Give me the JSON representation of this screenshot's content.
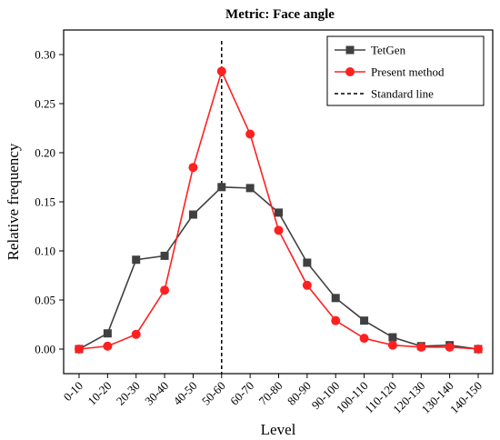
{
  "chart_data": {
    "type": "line",
    "title": "Metric: Face angle",
    "xlabel": "Level",
    "ylabel": "Relative frequency",
    "categories": [
      "0-10",
      "10-20",
      "20-30",
      "30-40",
      "40-50",
      "50-60",
      "60-70",
      "70-80",
      "80-90",
      "90-100",
      "100-110",
      "110-120",
      "120-130",
      "130-140",
      "140-150"
    ],
    "ylim": [
      -0.025,
      0.325
    ],
    "yticks": [
      "0.00",
      "0.05",
      "0.10",
      "0.15",
      "0.20",
      "0.25",
      "0.30"
    ],
    "ytick_values": [
      0,
      0.05,
      0.1,
      0.15,
      0.2,
      0.25,
      0.3
    ],
    "grid": false,
    "legend_position": "top-right",
    "series": [
      {
        "name": "TetGen",
        "color": "#404040",
        "marker": "square",
        "values": [
          0.0,
          0.016,
          0.091,
          0.095,
          0.137,
          0.165,
          0.164,
          0.139,
          0.088,
          0.052,
          0.029,
          0.012,
          0.003,
          0.004,
          0.0
        ]
      },
      {
        "name": "Present method",
        "color": "#ff2020",
        "marker": "circle",
        "values": [
          0.0,
          0.003,
          0.015,
          0.06,
          0.185,
          0.283,
          0.219,
          0.121,
          0.065,
          0.029,
          0.011,
          0.004,
          0.002,
          0.002,
          0.0
        ]
      }
    ],
    "reference_line": {
      "name": "Standard line",
      "category": "50-60",
      "style": "dashed",
      "color": "#000000"
    }
  }
}
